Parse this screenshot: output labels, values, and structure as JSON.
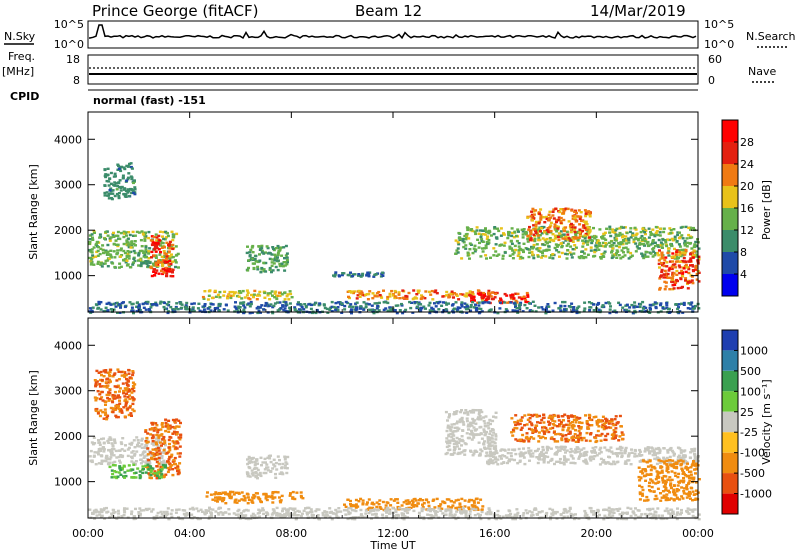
{
  "header": {
    "station": "Prince George (fitACF)",
    "beam": "Beam 12",
    "date": "14/Mar/2019"
  },
  "strips": {
    "nsky_label": "N.Sky",
    "nsky_ticks": [
      "10^5",
      "10^0"
    ],
    "nsearch_label": "N.Search",
    "nsearch_ticks": [
      "10^5",
      "10^0"
    ],
    "freq_label": "Freq.",
    "freq_unit": "[MHz]",
    "freq_ticks": [
      "18",
      "8"
    ],
    "nave_label": "Nave",
    "nave_ticks": [
      "60",
      "0"
    ],
    "cpid_label": "CPID",
    "cpid_text": "normal (fast) -151"
  },
  "chart_data": [
    {
      "type": "heatmap",
      "panel": "power",
      "xlabel": "",
      "ylabel": "Slant Range [km]",
      "xlim_hours": [
        0,
        24
      ],
      "ylim_km": [
        200,
        4600
      ],
      "x_tick_labels": [
        "00:00",
        "04:00",
        "08:00",
        "12:00",
        "16:00",
        "20:00",
        "00:00"
      ],
      "y_ticks": [
        1000,
        2000,
        3000,
        4000
      ],
      "colorbar": {
        "label": "Power [dB]",
        "tick_labels": [
          "4",
          "8",
          "12",
          "16",
          "20",
          "24",
          "28"
        ],
        "colors": [
          "#0000ee",
          "#1f4aa8",
          "#3b8c6a",
          "#66b04a",
          "#e8c21a",
          "#f07a12",
          "#e42010",
          "#ff0000"
        ]
      },
      "regions": [
        {
          "t": [
            0.0,
            3.5
          ],
          "r": [
            1200,
            2000
          ],
          "value": 14
        },
        {
          "t": [
            2.4,
            3.3
          ],
          "r": [
            1000,
            1900
          ],
          "value": 26
        },
        {
          "t": [
            0.6,
            1.8
          ],
          "r": [
            2700,
            3500
          ],
          "value": 10
        },
        {
          "t": [
            4.4,
            8.0
          ],
          "r": [
            500,
            700
          ],
          "value": 18
        },
        {
          "t": [
            6.2,
            7.8
          ],
          "r": [
            1100,
            1700
          ],
          "value": 12
        },
        {
          "t": [
            9.6,
            11.6
          ],
          "r": [
            1000,
            1100
          ],
          "value": 8
        },
        {
          "t": [
            10.0,
            16.0
          ],
          "r": [
            500,
            700
          ],
          "value": 22
        },
        {
          "t": [
            15.0,
            17.3
          ],
          "r": [
            420,
            650
          ],
          "value": 28
        },
        {
          "t": [
            14.4,
            24.0
          ],
          "r": [
            1400,
            2100
          ],
          "value": 14
        },
        {
          "t": [
            17.2,
            19.8
          ],
          "r": [
            1800,
            2500
          ],
          "value": 22
        },
        {
          "t": [
            22.4,
            24.0
          ],
          "r": [
            700,
            1600
          ],
          "value": 24
        },
        {
          "t": [
            0.0,
            24.0
          ],
          "r": [
            200,
            450
          ],
          "value": 8
        }
      ]
    },
    {
      "type": "heatmap",
      "panel": "velocity",
      "xlabel": "Time UT",
      "ylabel": "Slant Range [km]",
      "xlim_hours": [
        0,
        24
      ],
      "ylim_km": [
        200,
        4600
      ],
      "x_tick_labels": [
        "00:00",
        "04:00",
        "08:00",
        "12:00",
        "16:00",
        "20:00",
        "00:00"
      ],
      "y_ticks": [
        1000,
        2000,
        3000,
        4000
      ],
      "colorbar": {
        "label": "Velocity [m s⁻¹]",
        "tick_labels": [
          "1000",
          "500",
          "100",
          "25",
          "-25",
          "-100",
          "-500",
          "-1000"
        ],
        "colors": [
          "#1f3fb0",
          "#2e80a8",
          "#3aa050",
          "#6ccb3a",
          "#c8c8c0",
          "#ffc020",
          "#f08c10",
          "#e85010",
          "#e00000"
        ]
      },
      "regions": [
        {
          "t": [
            0.0,
            3.0
          ],
          "r": [
            1400,
            2000
          ],
          "value": 0
        },
        {
          "t": [
            2.2,
            3.6
          ],
          "r": [
            1100,
            2400
          ],
          "value": -300
        },
        {
          "t": [
            0.2,
            1.8
          ],
          "r": [
            2400,
            3500
          ],
          "value": -300
        },
        {
          "t": [
            0.8,
            3.0
          ],
          "r": [
            1100,
            1400
          ],
          "value": 60
        },
        {
          "t": [
            4.6,
            8.4
          ],
          "r": [
            550,
            800
          ],
          "value": -150
        },
        {
          "t": [
            6.2,
            7.8
          ],
          "r": [
            1100,
            1600
          ],
          "value": 0
        },
        {
          "t": [
            10.0,
            15.5
          ],
          "r": [
            400,
            650
          ],
          "value": -150
        },
        {
          "t": [
            14.0,
            16.0
          ],
          "r": [
            1600,
            2600
          ],
          "value": 0
        },
        {
          "t": [
            15.6,
            24.0
          ],
          "r": [
            1400,
            1800
          ],
          "value": 0
        },
        {
          "t": [
            16.6,
            21.0
          ],
          "r": [
            1900,
            2500
          ],
          "value": -300
        },
        {
          "t": [
            21.6,
            24.0
          ],
          "r": [
            600,
            1500
          ],
          "value": -150
        },
        {
          "t": [
            0.0,
            24.0
          ],
          "r": [
            200,
            450
          ],
          "value": 0
        }
      ]
    }
  ]
}
